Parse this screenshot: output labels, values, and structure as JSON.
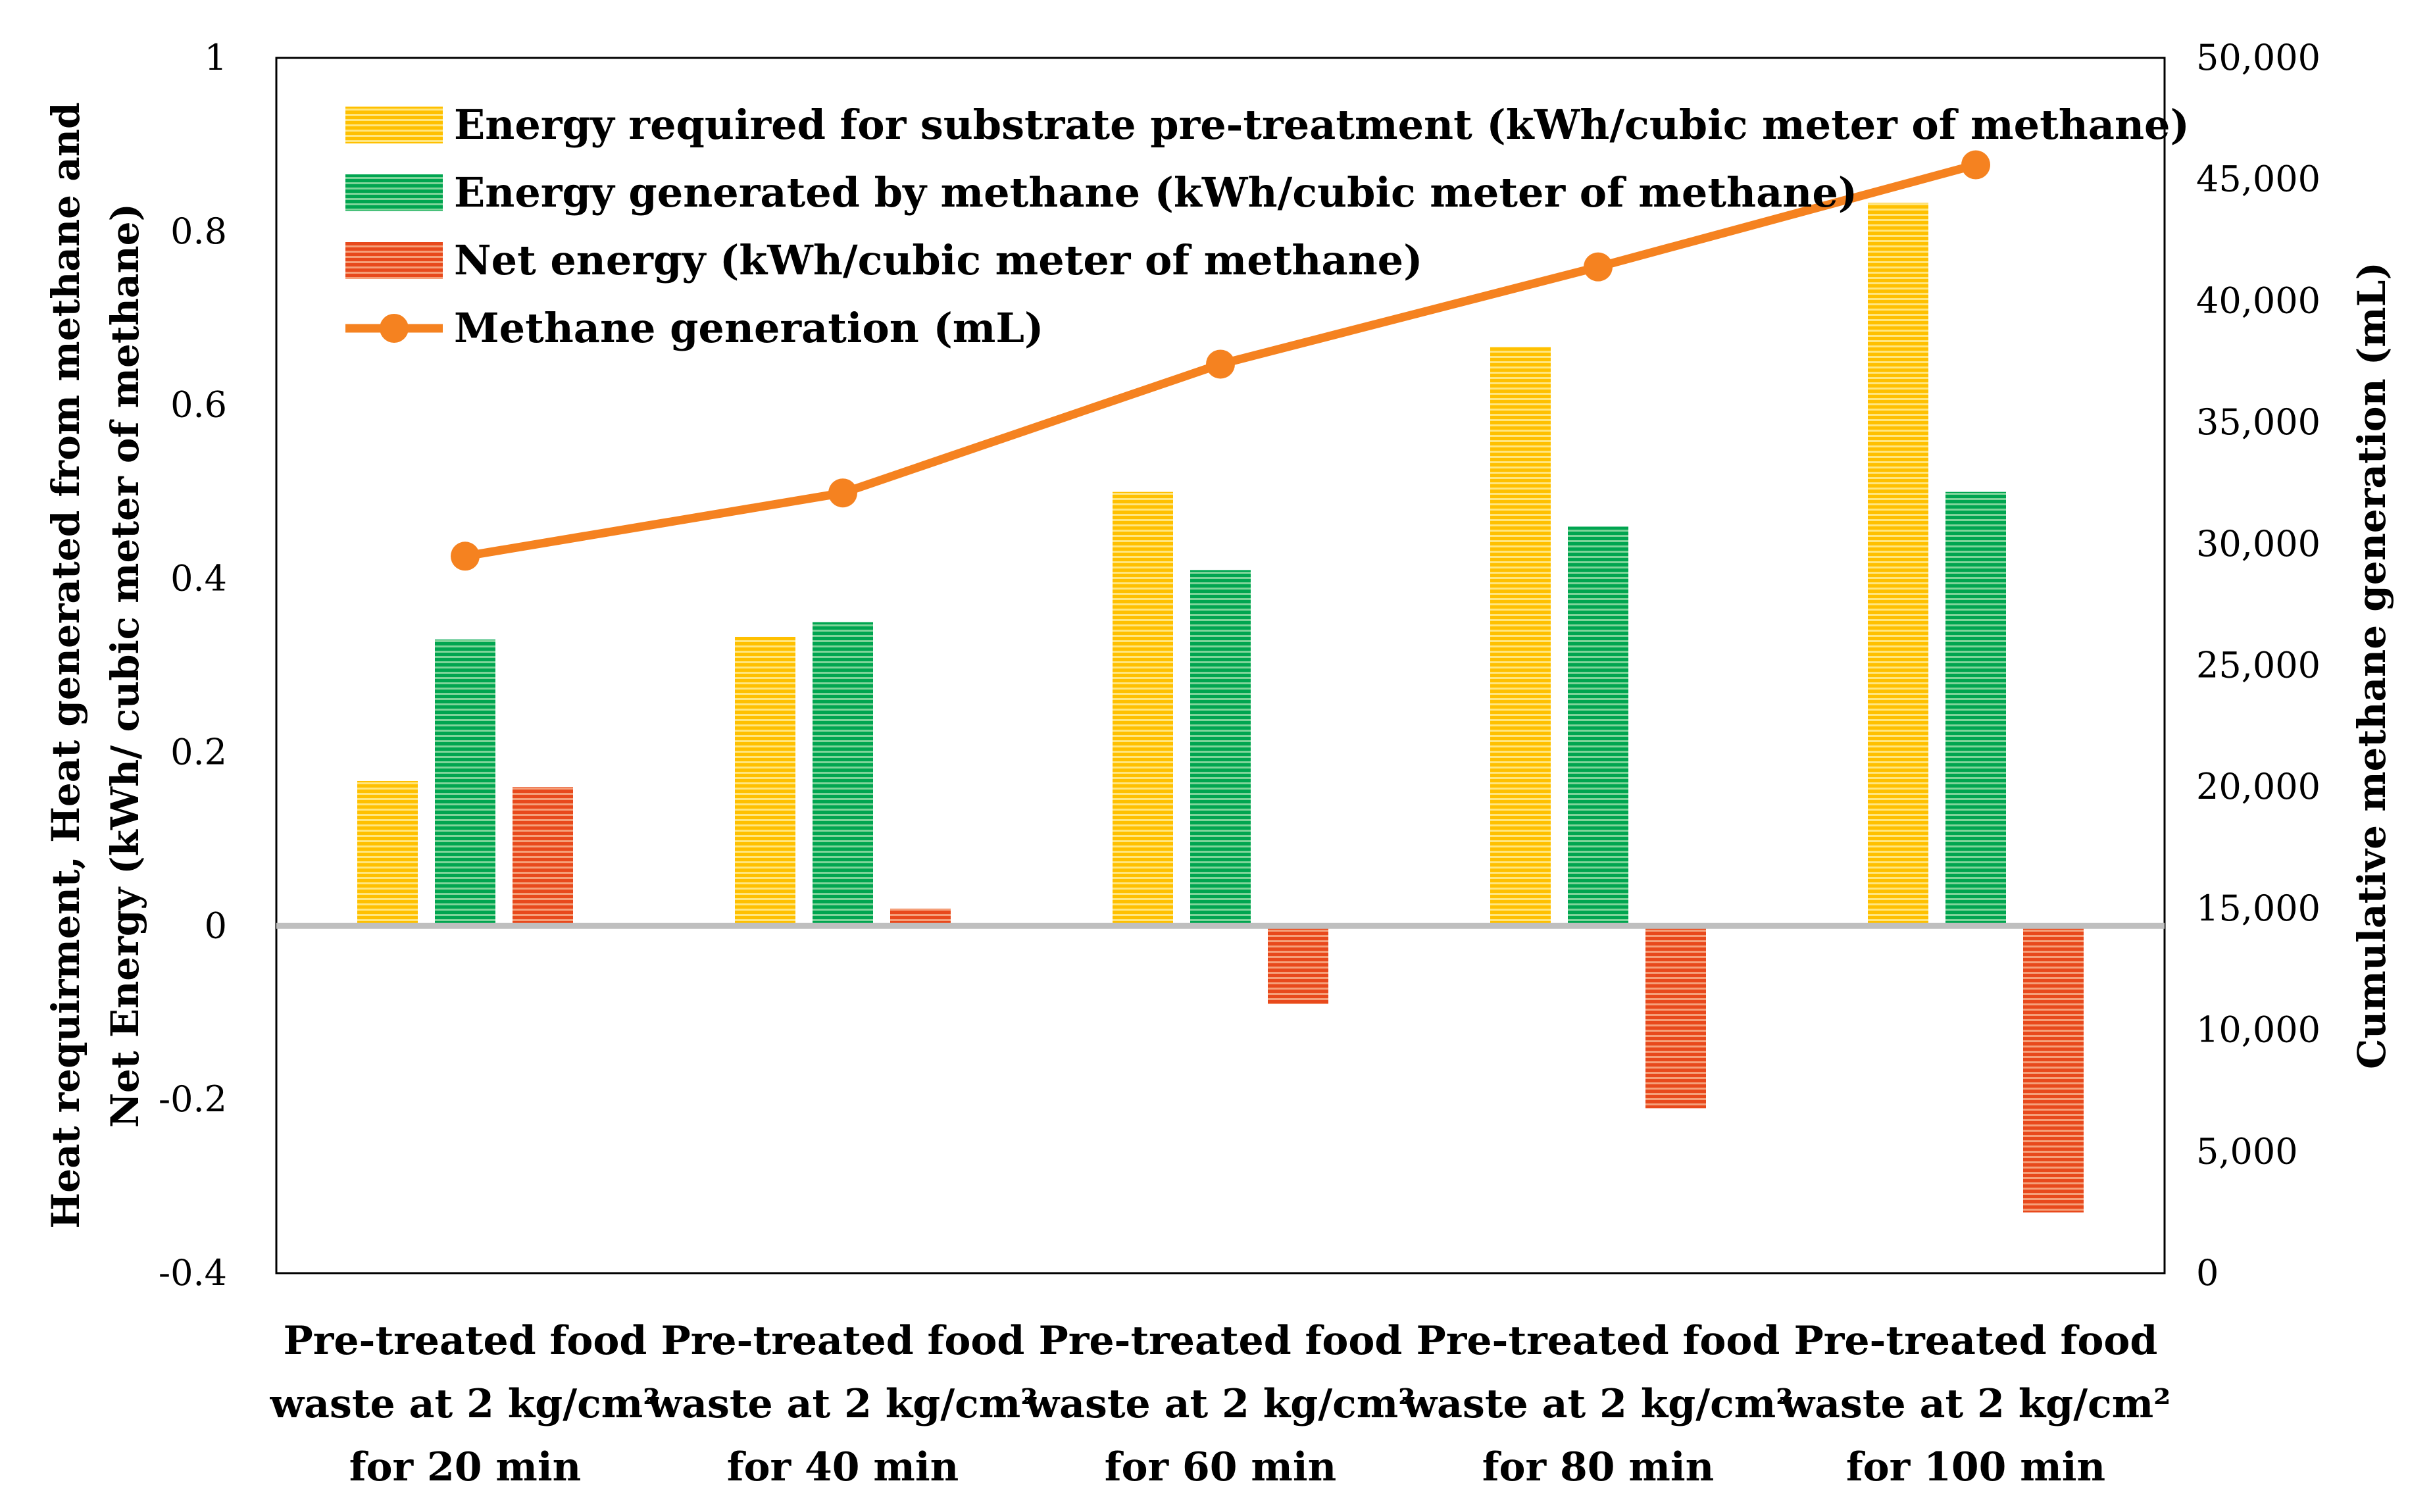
{
  "chart_data": {
    "type": "bar",
    "categories": [
      [
        "Pre-treated food",
        "waste at 2 kg/cm²",
        "for 20 min"
      ],
      [
        "Pre-treated food",
        "waste at 2 kg/cm²",
        "for 40 min"
      ],
      [
        "Pre-treated food",
        "waste at 2 kg/cm²",
        "for 60 min"
      ],
      [
        "Pre-treated food",
        "waste at 2 kg/cm²",
        "for 80 min"
      ],
      [
        "Pre-treated food",
        "waste at 2 kg/cm²",
        "for 100 min"
      ]
    ],
    "series": [
      {
        "name": "Energy required for substrate pre-treatment (kWh/cubic meter of methane)",
        "type": "bar",
        "axis": "left",
        "color": "#FFC000",
        "stripe_color": "#FFE680",
        "values": [
          0.167,
          0.333,
          0.5,
          0.667,
          0.833
        ]
      },
      {
        "name": "Energy generated by methane (kWh/cubic meter of methane)",
        "type": "bar",
        "axis": "left",
        "color": "#00A550",
        "stripe_color": "#7FD49A",
        "values": [
          0.33,
          0.35,
          0.41,
          0.46,
          0.5
        ]
      },
      {
        "name": "Net energy (kWh/cubic meter of methane)",
        "type": "bar",
        "axis": "left",
        "color": "#E8491C",
        "stripe_color": "#F5A07A",
        "values": [
          0.16,
          0.02,
          -0.09,
          -0.21,
          -0.33
        ]
      },
      {
        "name": "Methane generation (mL)",
        "type": "line",
        "axis": "right",
        "color": "#F58220",
        "values": [
          29500,
          32100,
          37400,
          41400,
          45600
        ]
      }
    ],
    "y_left": {
      "label": [
        "Heat requirment, Heat generated from methane and",
        "Net Energy (kWh/ cubic meter of methane)"
      ],
      "range": [
        -0.4,
        1.0
      ],
      "ticks": [
        -0.4,
        -0.2,
        0,
        0.2,
        0.4,
        0.6,
        0.8,
        1
      ],
      "tick_labels": [
        "-0.4",
        "-0.2",
        "0",
        "0.2",
        "0.4",
        "0.6",
        "0.8",
        "1"
      ]
    },
    "y_right": {
      "label": "Cumulative methane generation (mL)",
      "range": [
        0,
        50000
      ],
      "ticks": [
        0,
        5000,
        10000,
        15000,
        20000,
        25000,
        30000,
        35000,
        40000,
        45000,
        50000
      ],
      "tick_labels": [
        "0",
        "5,000",
        "10,000",
        "15,000",
        "20,000",
        "25,000",
        "30,000",
        "35,000",
        "40,000",
        "45,000",
        "50,000"
      ]
    },
    "zero_line_color": "#BFBFBF",
    "legend_position": "top-left",
    "grid": false
  }
}
